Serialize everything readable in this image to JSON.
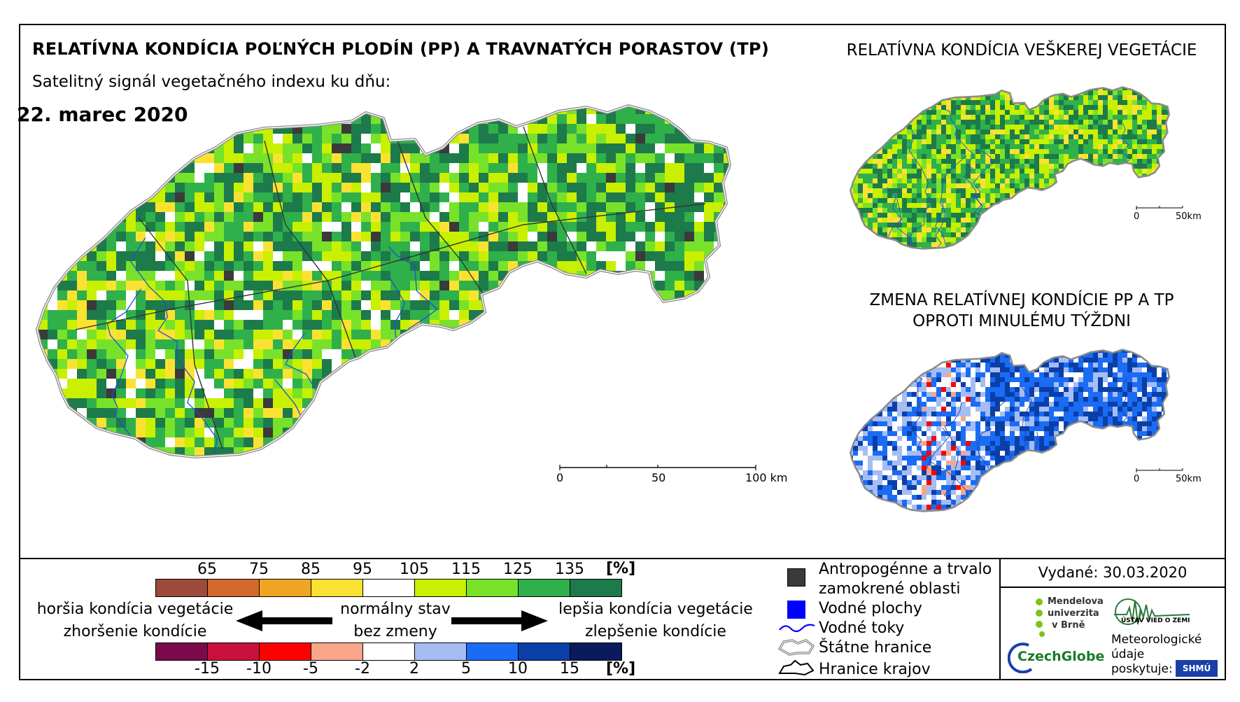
{
  "title": "RELATÍVNA KONDÍCIA POĽNÝCH PLODÍN (PP) A TRAVNATÝCH PORASTOV (TP)",
  "subtitle": "Satelitný signál vegetačného indexu ku dňu:",
  "date": "22. marec 2020",
  "panel_all_veg_title": "RELATÍVNA KONDÍCIA VEŠKEREJ VEGETÁCIE",
  "panel_change_title_line1": "ZMENA RELATÍVNEJ KONDÍCIE PP A TP",
  "panel_change_title_line2": "OPROTI MINULÉMU TÝŽDNI",
  "main_scalebar": {
    "label0": "0",
    "label1": "50",
    "label2": "100 km"
  },
  "small_scalebar": {
    "label0": "0",
    "label1": "50km"
  },
  "condition_legend": {
    "ticks": [
      "65",
      "75",
      "85",
      "95",
      "105",
      "115",
      "125",
      "135"
    ],
    "unit": "[%]",
    "colors": [
      "#9c4a3b",
      "#d4692c",
      "#f0a522",
      "#fbe232",
      "#ffffff",
      "#c8f000",
      "#78e22a",
      "#2fb04b",
      "#1d7a4a"
    ]
  },
  "change_legend": {
    "ticks": [
      "-15",
      "-10",
      "-5",
      "-2",
      "2",
      "5",
      "10",
      "15"
    ],
    "unit": "[%]",
    "colors": [
      "#7a0a4a",
      "#c8123c",
      "#ff0000",
      "#f9a58a",
      "#ffffff",
      "#a6bdf4",
      "#1a6cf5",
      "#0a3fa8",
      "#0a1a5c"
    ]
  },
  "legend_text": {
    "worse_line1": "horšia kondícia vegetácie",
    "worse_line2": "zhoršenie kondície",
    "normal_line1": "normálny stav",
    "normal_line2": "bez zmeny",
    "better_line1": "lepšia kondícia vegetácie",
    "better_line2": "zlepšenie kondície"
  },
  "key": {
    "anthropogenic_line1": "Antropogénne a trvalo",
    "anthropogenic_line2": "zamokrené oblasti",
    "water_bodies": "Vodné plochy",
    "water_streams": "Vodné toky",
    "state_border": "Štátne hranice",
    "region_border": "Hranice krajov",
    "colors": {
      "anthropogenic": "#3a3a3a",
      "water_bodies": "#0000ff",
      "water_streams": "#0000ff"
    }
  },
  "issued": "Vydané: 30.03.2020",
  "logos": {
    "mendel_line1": "Mendelova",
    "mendel_line2": "univerzita",
    "mendel_line3": "v Brně",
    "czechglobe": "CzechGlobe",
    "usv": "ÚSTAV VIED O ZEMI",
    "meteo_line1": "Meteorologické",
    "meteo_line2": "údaje",
    "meteo_line3": "poskytuje:",
    "shmu": "SHMÚ"
  }
}
